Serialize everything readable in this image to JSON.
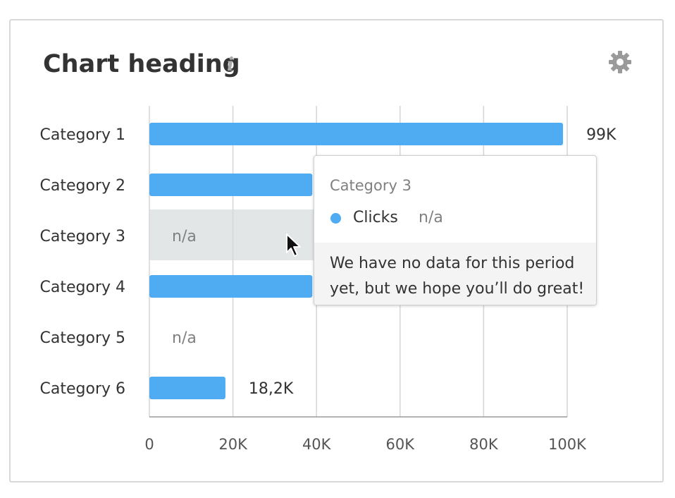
{
  "header": {
    "title": "Chart heading",
    "info_icon": "info-icon",
    "info_glyph": "i",
    "settings_icon": "gear-icon"
  },
  "colors": {
    "bar": "#4fabf2",
    "no_data_highlight": "#e3e6e7",
    "grid": "#d6d6d6",
    "axis": "#9a9a9a"
  },
  "chart_data": {
    "type": "bar",
    "orientation": "horizontal",
    "categories": [
      "Category 1",
      "Category 2",
      "Category 3",
      "Category 4",
      "Category 5",
      "Category 6"
    ],
    "series": [
      {
        "name": "Clicks",
        "values": [
          99000,
          39000,
          null,
          39000,
          null,
          18200
        ],
        "labels": [
          "99K",
          "",
          "n/a",
          "",
          "n/a",
          "18,2K"
        ]
      }
    ],
    "xlim": [
      0,
      100000
    ],
    "xticks": [
      0,
      20000,
      40000,
      60000,
      80000,
      100000
    ],
    "xtick_labels": [
      "0",
      "20K",
      "40K",
      "60K",
      "80K",
      "100K"
    ],
    "grid": true,
    "highlighted_category": "Category 3"
  },
  "tooltip": {
    "title": "Category 3",
    "series_name": "Clicks",
    "value": "n/a",
    "message": "We have no data for this period yet, but we hope you’ll do great!"
  }
}
